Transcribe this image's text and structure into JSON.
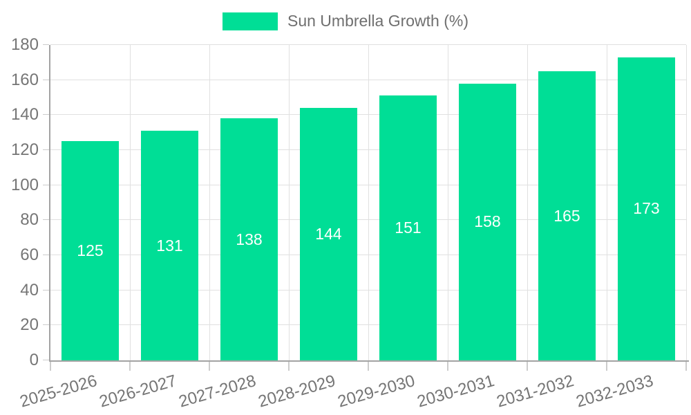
{
  "chart_data": {
    "type": "bar",
    "title": "Sun Umbrella Growth (%)",
    "categories": [
      "2025-2026",
      "2026-2027",
      "2027-2028",
      "2028-2029",
      "2029-2030",
      "2030-2031",
      "2031-2032",
      "2032-2033"
    ],
    "values": [
      125,
      131,
      138,
      144,
      151,
      158,
      165,
      173
    ],
    "xlabel": "",
    "ylabel": "",
    "ylim": [
      0,
      180
    ],
    "ytick_step": 20,
    "grid": true,
    "legend_position": "top",
    "bar_labels_inside": true,
    "colors": {
      "bar": "#00DE96",
      "bar_value_text": "#ffffff",
      "axis_line": "#a3a3a3",
      "gridline": "#e0e0e0",
      "tick_mark": "#cccccc",
      "tick_text": "#757575",
      "legend_text": "#6f6f6f",
      "background": "#ffffff"
    }
  }
}
